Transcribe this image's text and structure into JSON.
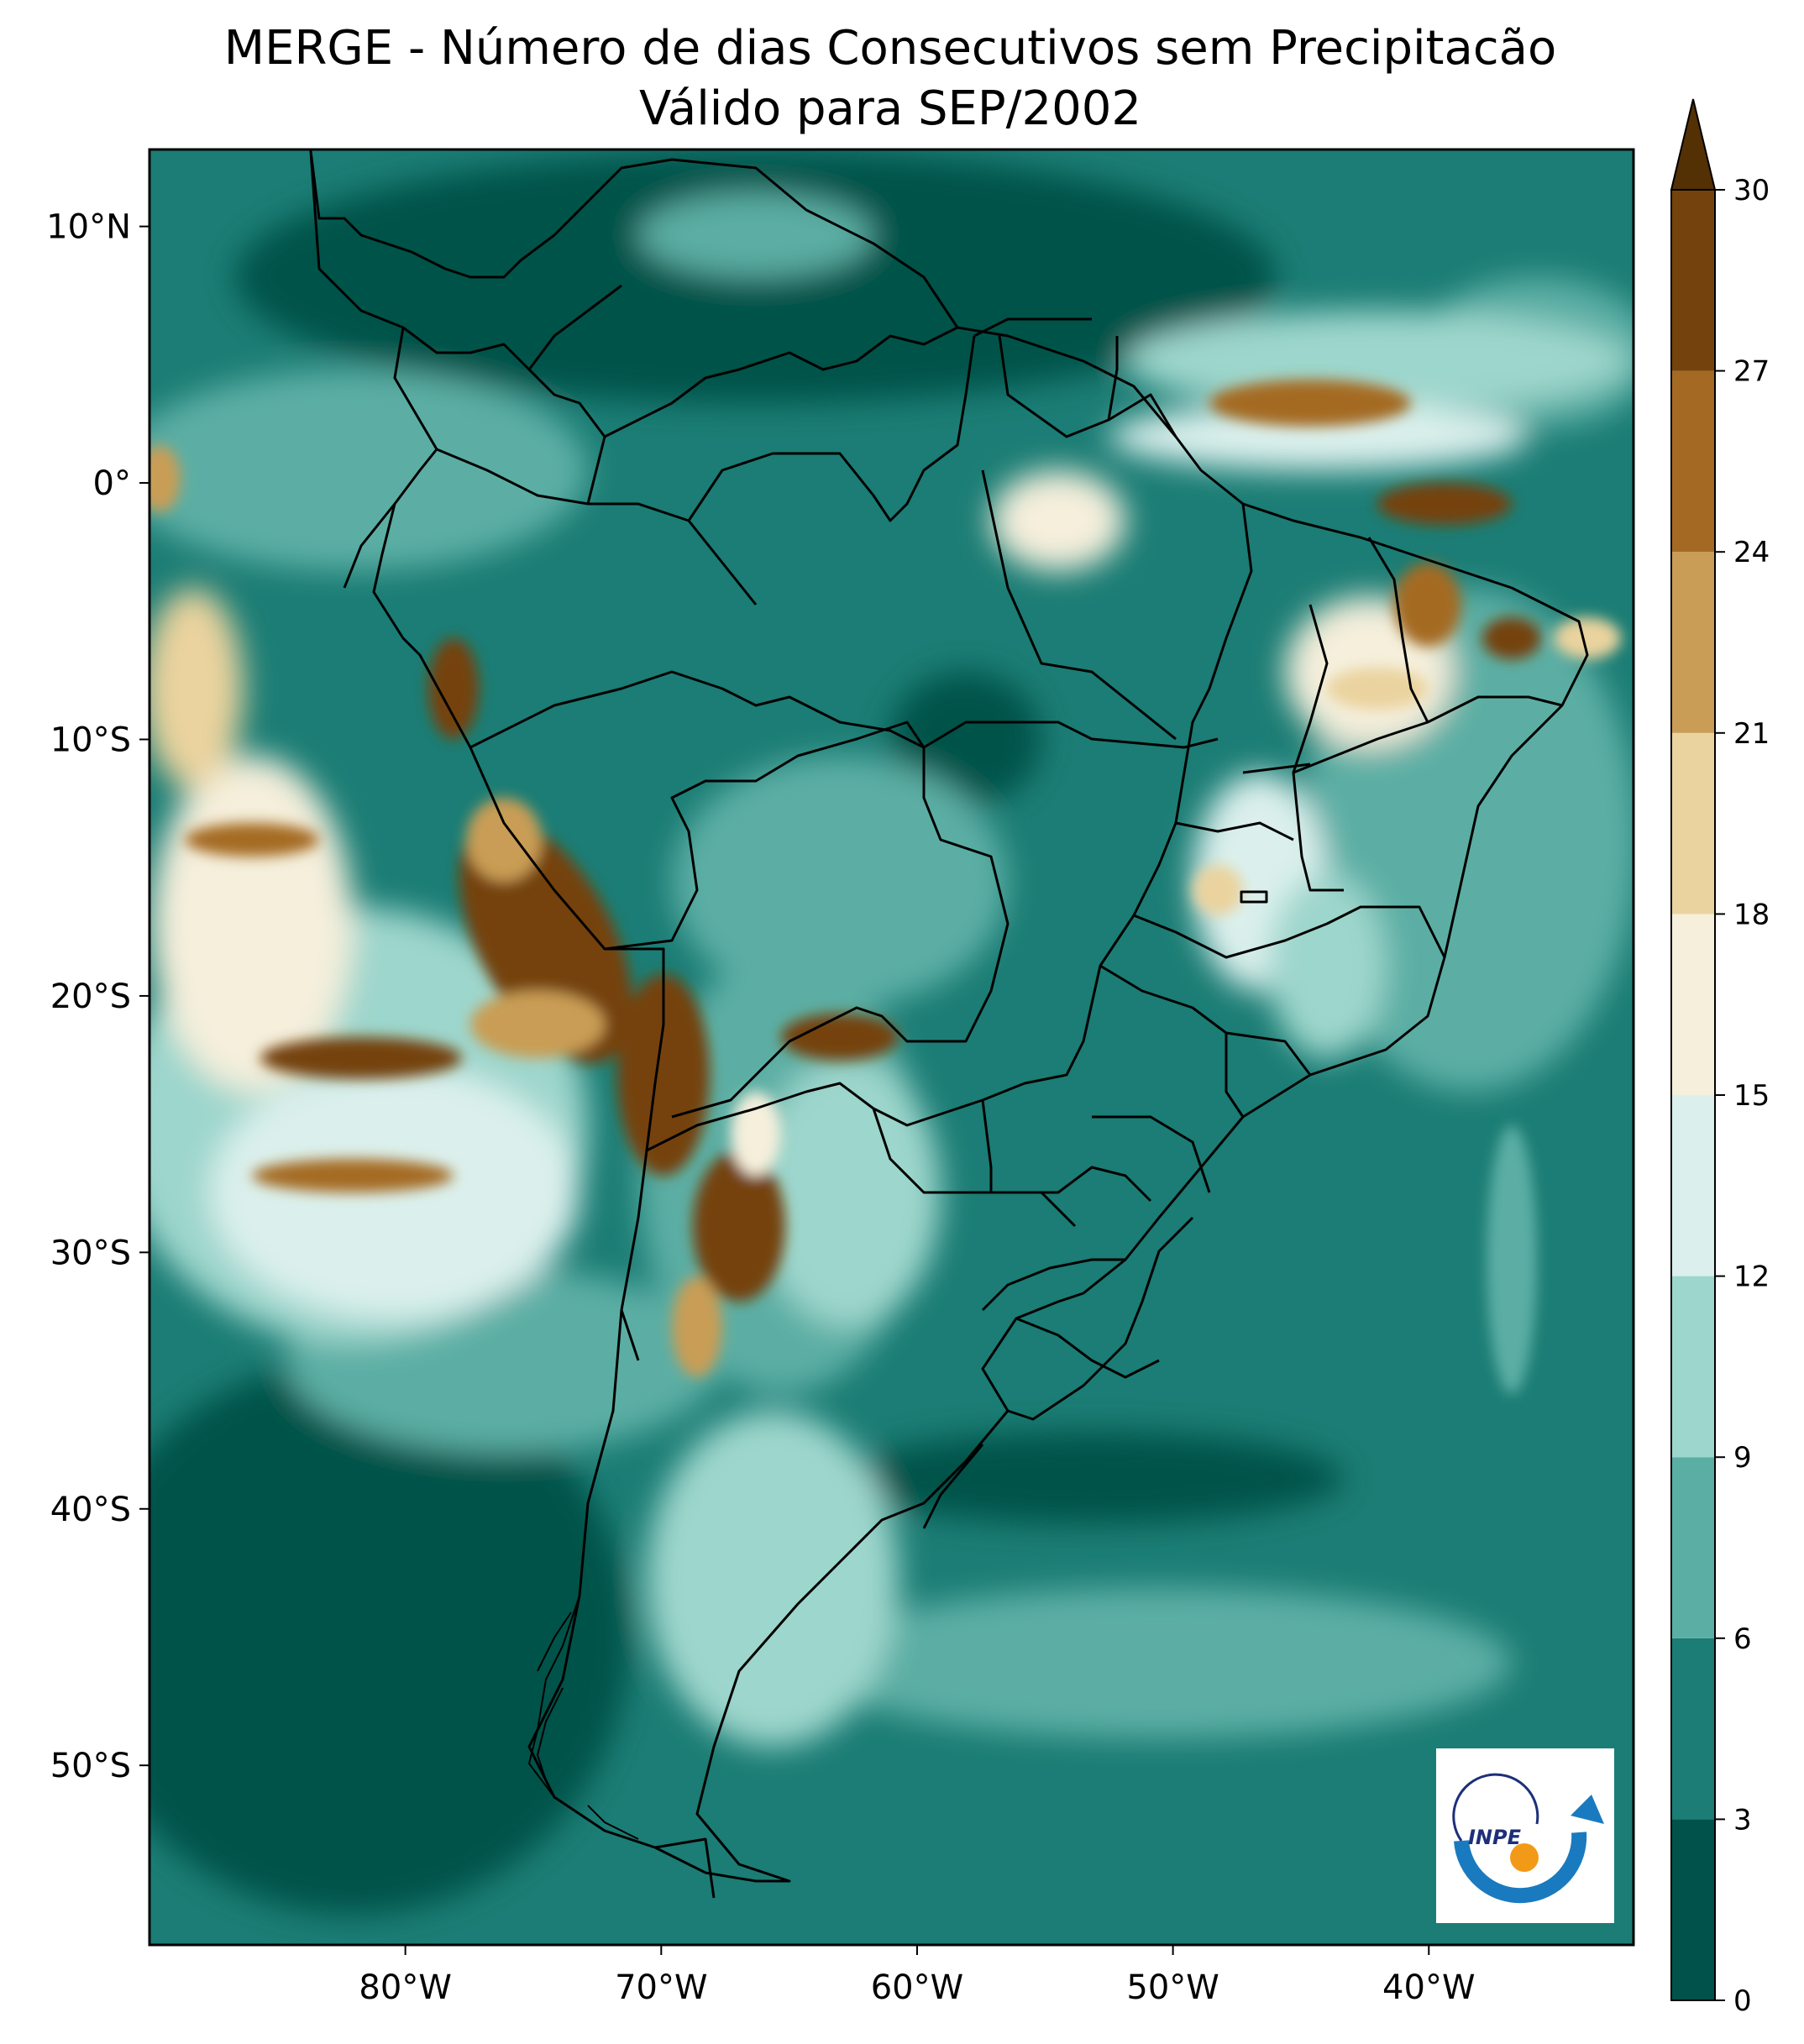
{
  "title": {
    "line1": "MERGE - Número de dias Consecutivos sem Precipitacão",
    "line2": "Válido para SEP/2002"
  },
  "map": {
    "lon_range": [
      -90,
      -32
    ],
    "lat_range": [
      -57,
      13
    ],
    "lon_ticks": [
      {
        "value": -80,
        "label": "80°W"
      },
      {
        "value": -70,
        "label": "70°W"
      },
      {
        "value": -60,
        "label": "60°W"
      },
      {
        "value": -50,
        "label": "50°W"
      },
      {
        "value": -40,
        "label": "40°W"
      }
    ],
    "lat_ticks": [
      {
        "value": 10,
        "label": "10°N"
      },
      {
        "value": 0,
        "label": "0°"
      },
      {
        "value": -10,
        "label": "10°S"
      },
      {
        "value": -20,
        "label": "20°S"
      },
      {
        "value": -30,
        "label": "30°S"
      },
      {
        "value": -40,
        "label": "40°S"
      },
      {
        "value": -50,
        "label": "50°S"
      }
    ]
  },
  "colorbar": {
    "boundaries": [
      0,
      3,
      6,
      9,
      12,
      15,
      18,
      21,
      24,
      27,
      30
    ],
    "labels": [
      "0",
      "3",
      "6",
      "9",
      "12",
      "15",
      "18",
      "21",
      "24",
      "27",
      "30"
    ],
    "colors": [
      "#01524a",
      "#1b7d75",
      "#5baea4",
      "#9dd6cc",
      "#dbf0ed",
      "#f5efdc",
      "#ead39e",
      "#c99d55",
      "#a46a23",
      "#74430d"
    ],
    "extend_color": "#543005",
    "extend": "max"
  },
  "logo": {
    "text": "INPE"
  }
}
